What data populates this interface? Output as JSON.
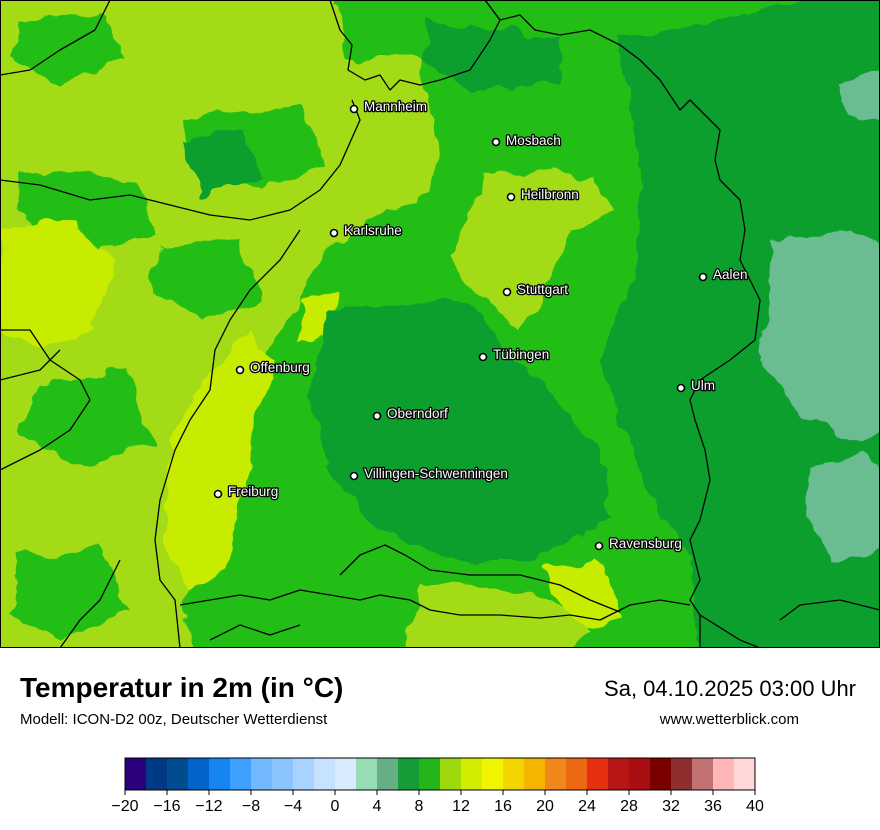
{
  "map": {
    "colors": {
      "light_lime": "#a3dc13",
      "mid_green": "#22be18",
      "dark_green": "#0b9f2f",
      "yellow_lime": "#c8ec00",
      "teal": "#6bbd91",
      "border": "#000000"
    },
    "cities": [
      {
        "name": "Mannheim"
      },
      {
        "name": "Mosbach"
      },
      {
        "name": "Heilbronn"
      },
      {
        "name": "Karlsruhe"
      },
      {
        "name": "Aalen"
      },
      {
        "name": "Stuttgart"
      },
      {
        "name": "Tübingen"
      },
      {
        "name": "Offenburg"
      },
      {
        "name": "Ulm"
      },
      {
        "name": "Oberndorf"
      },
      {
        "name": "Villingen-Schwenningen"
      },
      {
        "name": "Freiburg"
      },
      {
        "name": "Ravensburg"
      }
    ]
  },
  "header": {
    "title": "Temperatur in 2m (in °C)",
    "model": "Modell: ICON-D2 00z, Deutscher Wetterdienst",
    "datetime": "Sa, 04.10.2025 03:00 Uhr",
    "website": "www.wetterblick.com"
  },
  "legend": {
    "unit": "°C",
    "min": -20,
    "max": 40,
    "step": 2,
    "colors": [
      "#2c007c",
      "#003a85",
      "#004c8e",
      "#0064c8",
      "#1585f2",
      "#3ea1ff",
      "#72b9ff",
      "#8cc4ff",
      "#a8d2ff",
      "#c6e2ff",
      "#d9ecff",
      "#98dcb6",
      "#66ae84",
      "#159b37",
      "#23b51a",
      "#9fd80d",
      "#d4ec00",
      "#f2f500",
      "#f2d400",
      "#f4b400",
      "#f1871b",
      "#ec6813",
      "#e63110",
      "#b61616",
      "#a90f12",
      "#7a0000",
      "#8e2e2e",
      "#c27272",
      "#ffb6b6",
      "#ffd8d8"
    ],
    "ticks": [
      "−20",
      "−16",
      "−12",
      "−8",
      "−4",
      "0",
      "4",
      "8",
      "12",
      "16",
      "20",
      "24",
      "28",
      "32",
      "36",
      "40"
    ]
  }
}
